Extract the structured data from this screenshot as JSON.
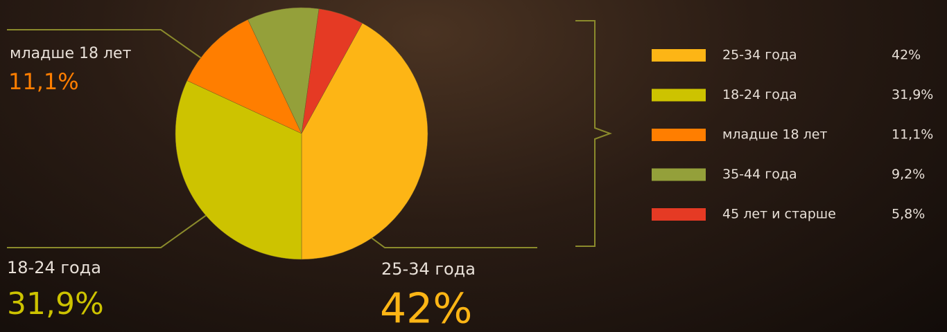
{
  "chart_data": {
    "type": "pie",
    "categories": [
      "25-34 года",
      "18-24 года",
      "младше 18 лет",
      "35-44 года",
      "45 лет и старше"
    ],
    "values": [
      42,
      31.9,
      11.1,
      9.2,
      5.8
    ],
    "value_labels": [
      "42%",
      "31,9%",
      "11,1%",
      "9,2%",
      "5,8%"
    ],
    "colors": [
      "#fdb515",
      "#cdc300",
      "#ff7e00",
      "#94a03a",
      "#e53a24"
    ]
  }
}
